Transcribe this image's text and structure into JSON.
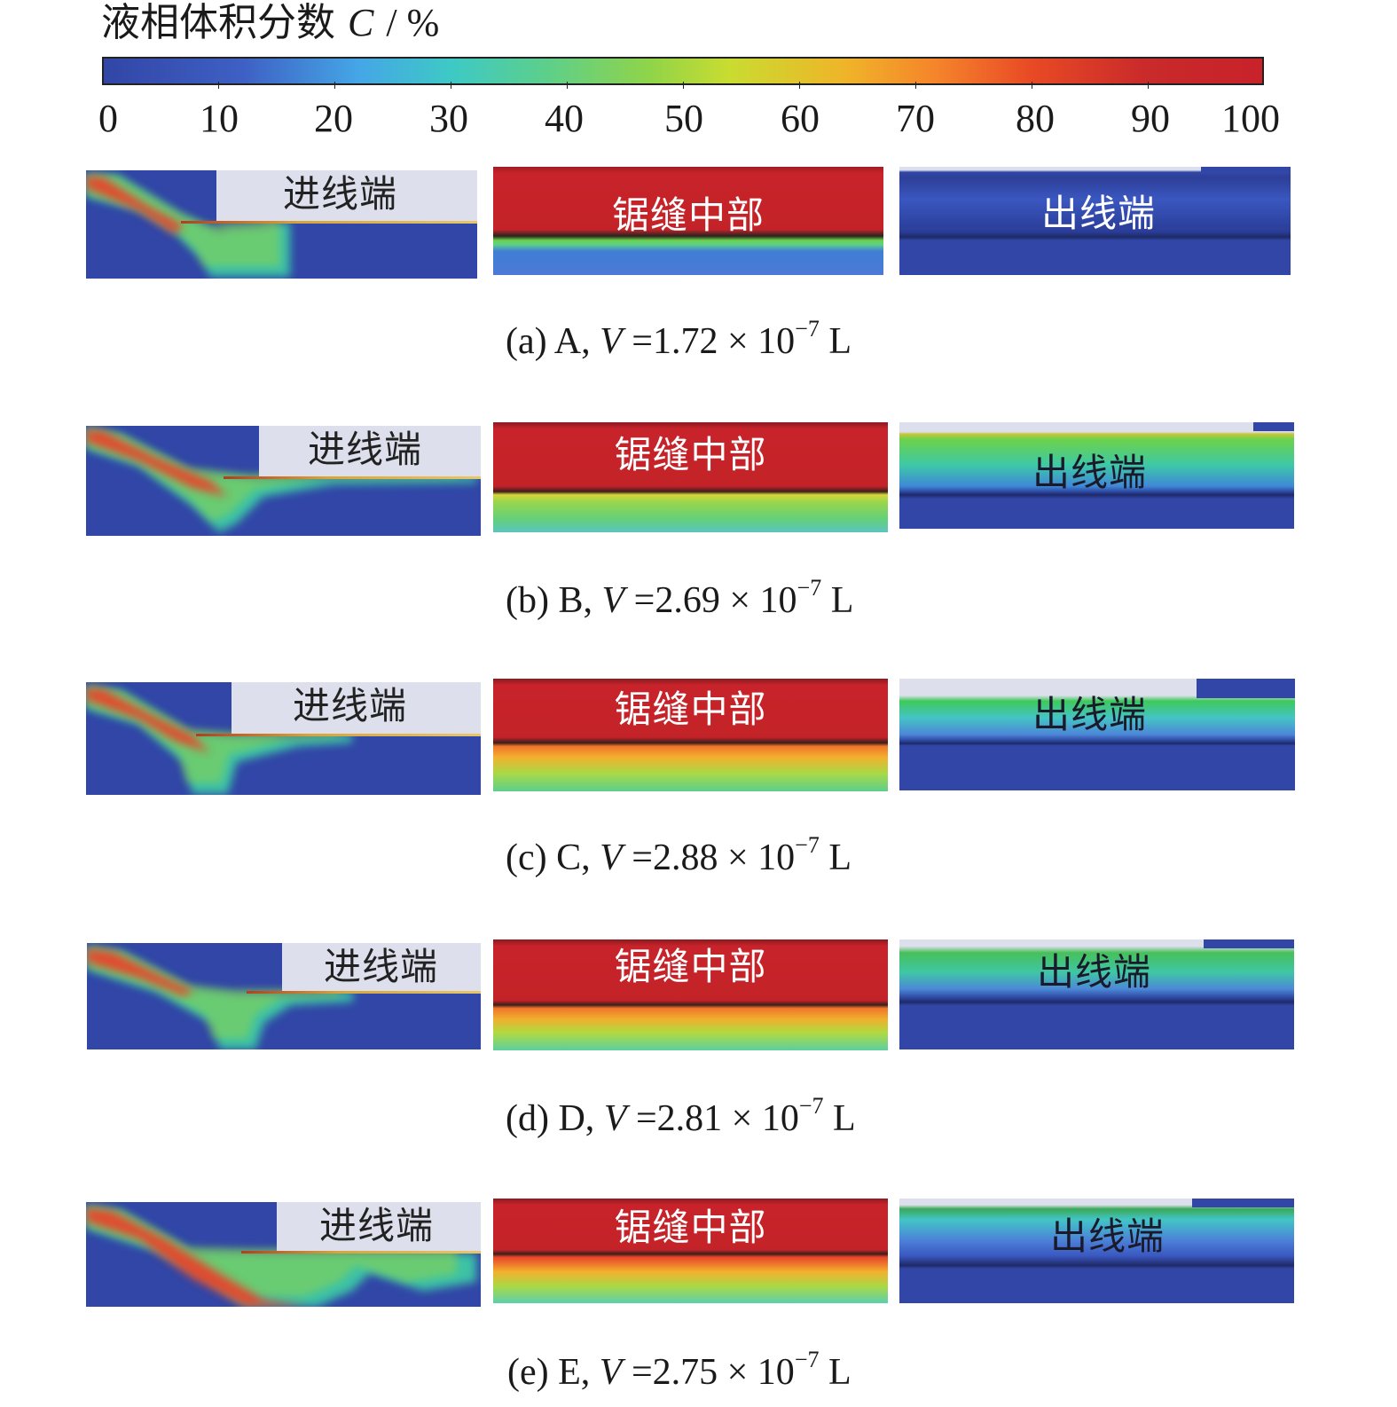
{
  "legend": {
    "title_cn": "液相体积分数",
    "symbol": "C",
    "unit": "/ %",
    "ticks": [
      "0",
      "10",
      "20",
      "30",
      "40",
      "50",
      "60",
      "70",
      "80",
      "90",
      "100"
    ]
  },
  "panel_labels": {
    "inlet": "进线端",
    "mid": "锯缝中部",
    "outlet": "出线端"
  },
  "rows": [
    {
      "id": "a",
      "caption_prefix": "(a) A,",
      "var": "V",
      "caption_value": " =1.72 × 10",
      "exp": "−7",
      "caption_unit": " L"
    },
    {
      "id": "b",
      "caption_prefix": "(b) B,",
      "var": "V",
      "caption_value": " =2.69 × 10",
      "exp": "−7",
      "caption_unit": " L"
    },
    {
      "id": "c",
      "caption_prefix": "(c) C,",
      "var": "V",
      "caption_value": " =2.88 × 10",
      "exp": "−7",
      "caption_unit": " L"
    },
    {
      "id": "d",
      "caption_prefix": "(d) D,",
      "var": "V",
      "caption_value": " =2.81 × 10",
      "exp": "−7",
      "caption_unit": " L"
    },
    {
      "id": "e",
      "caption_prefix": "(e) E,",
      "var": "V",
      "caption_value": " =2.75 × 10",
      "exp": "−7",
      "caption_unit": " L"
    }
  ]
}
